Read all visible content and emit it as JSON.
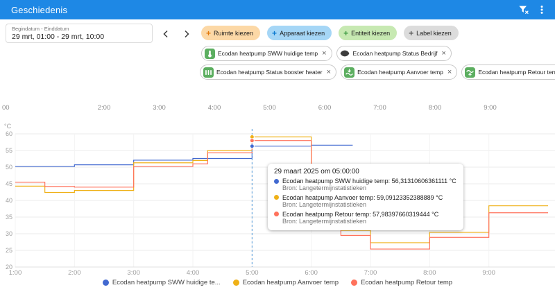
{
  "header": {
    "title": "Geschiedenis"
  },
  "toolbar": {
    "date_range": {
      "label": "Begindatum - Einddatum",
      "value": "29 mrt, 01:00 - 29 mrt, 10:00"
    },
    "plus_glyph": "+",
    "filter_chips": [
      {
        "label": "Ruimte kiezen",
        "bg": "#fcd8a6",
        "accent": "#e2790b"
      },
      {
        "label": "Apparaat kiezen",
        "bg": "#a5d6f6",
        "accent": "#0b79d0"
      },
      {
        "label": "Entiteit kiezen",
        "bg": "#c7e9b2",
        "accent": "#3e9b43"
      },
      {
        "label": "Label kiezen",
        "bg": "#dcdcdc",
        "accent": "#555555"
      }
    ],
    "entity_chip_rows": [
      [
        {
          "label": "Ecodan heatpump SWW huidige temp",
          "icon": "thermometer-icon",
          "remove": "×"
        },
        {
          "label": "Ecodan heatpump Status Bedrijf",
          "icon": "eye-icon",
          "remove": "×"
        }
      ],
      [
        {
          "label": "Ecodan heatpump Status booster heater",
          "icon": "radiator-icon",
          "remove": "×"
        },
        {
          "label": "Ecodan heatpump Aanvoer temp",
          "icon": "flow-temp-icon",
          "remove": "×"
        },
        {
          "label": "Ecodan heatpump Retour temp",
          "icon": "return-temp-icon",
          "remove": "×"
        }
      ]
    ]
  },
  "chart_data": {
    "type": "line",
    "line_style": "step-after",
    "top_axis_labels": [
      "00",
      "2:00",
      "3:00",
      "4:00",
      "5:00",
      "6:00",
      "7:00",
      "8:00",
      "9:00"
    ],
    "x_axis": {
      "min": 1,
      "max": 10,
      "tick_hours": [
        1,
        2,
        3,
        4,
        5,
        6,
        7,
        8,
        9
      ],
      "tick_labels": [
        "1:00",
        "2:00",
        "3:00",
        "4:00",
        "5:00",
        "6:00",
        "7:00",
        "8:00",
        "9:00"
      ]
    },
    "y_axis": {
      "min": 20,
      "max": 60,
      "ticks": [
        20,
        25,
        30,
        35,
        40,
        45,
        50,
        55,
        60
      ],
      "unit": "°C"
    },
    "grid": true,
    "legend_position": "bottom",
    "crosshair_hour": 5,
    "series": [
      {
        "name": "Ecodan heatpump SWW huidige temp",
        "color": "#4269d0",
        "points": [
          [
            1,
            50.2
          ],
          [
            2,
            50.7
          ],
          [
            3,
            52.1
          ],
          [
            4,
            52.6
          ],
          [
            5,
            56.31
          ],
          [
            6,
            56.6
          ],
          [
            6.7,
            56.6
          ]
        ]
      },
      {
        "name": "Ecodan heatpump Aanvoer temp",
        "color": "#efb118",
        "points": [
          [
            1,
            44.3
          ],
          [
            1.5,
            42.4
          ],
          [
            2,
            43.0
          ],
          [
            3,
            51.3
          ],
          [
            4,
            52.0
          ],
          [
            4.25,
            55.0
          ],
          [
            5,
            59.09
          ],
          [
            6,
            33.5
          ],
          [
            6.5,
            31.0
          ],
          [
            7,
            27.3
          ],
          [
            8,
            30.4
          ],
          [
            9,
            38.4
          ],
          [
            10,
            38.4
          ]
        ]
      },
      {
        "name": "Ecodan heatpump Retour temp",
        "color": "#ff725c",
        "points": [
          [
            1,
            45.5
          ],
          [
            1.5,
            44.2
          ],
          [
            2,
            44.0
          ],
          [
            3,
            50.2
          ],
          [
            4,
            51.0
          ],
          [
            4.25,
            54.3
          ],
          [
            5,
            57.98
          ],
          [
            6,
            31.5
          ],
          [
            6.5,
            29.5
          ],
          [
            7,
            25.4
          ],
          [
            8,
            28.9
          ],
          [
            9,
            36.3
          ],
          [
            10,
            36.3
          ]
        ]
      }
    ],
    "highlight_hour_values": [
      56.31,
      59.09,
      57.98
    ]
  },
  "tooltip": {
    "title": "29 maart 2025 om 05:00:00",
    "source_label": "Bron: Langetermijnstatistieken",
    "items": [
      {
        "name": "Ecodan heatpump SWW huidige temp",
        "value": "56,31310606361111 °C",
        "color": "#4269d0"
      },
      {
        "name": "Ecodan heatpump Aanvoer temp",
        "value": "59,09123352388889 °C",
        "color": "#efb118"
      },
      {
        "name": "Ecodan heatpump Retour temp",
        "value": "57,98397660319444 °C",
        "color": "#ff725c"
      }
    ]
  },
  "legend": {
    "items": [
      {
        "label": "Ecodan heatpump SWW huidige te...",
        "color": "#4269d0"
      },
      {
        "label": "Ecodan heatpump Aanvoer temp",
        "color": "#efb118"
      },
      {
        "label": "Ecodan heatpump Retour temp",
        "color": "#ff725c"
      }
    ]
  }
}
